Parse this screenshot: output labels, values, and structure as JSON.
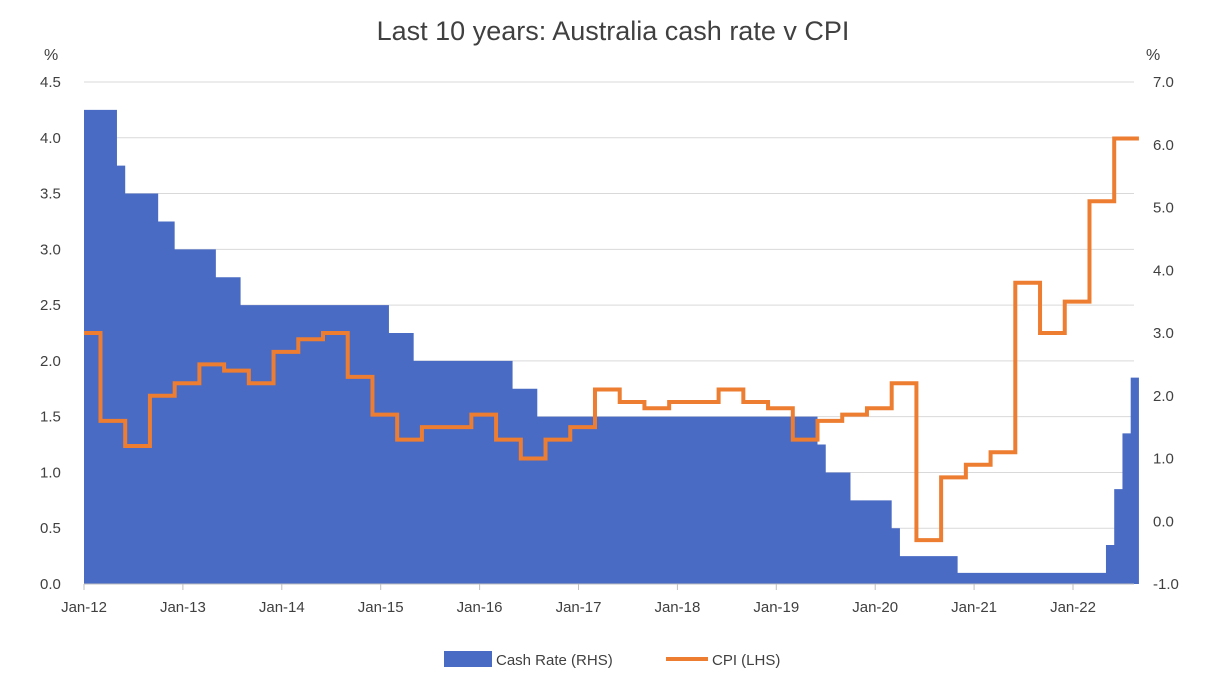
{
  "chart_data": {
    "type": "area+line",
    "title": "Last 10 years: Australia cash rate v CPI",
    "left_axis": {
      "unit": "%",
      "ylim": [
        0,
        4.5
      ],
      "ticks": [
        "0.0",
        "0.5",
        "1.0",
        "1.5",
        "2.0",
        "2.5",
        "3.0",
        "3.5",
        "4.0",
        "4.5"
      ]
    },
    "right_axis": {
      "unit": "%",
      "ylim": [
        -1.0,
        7.0
      ],
      "ticks": [
        "-1.0",
        "0.0",
        "1.0",
        "2.0",
        "3.0",
        "4.0",
        "5.0",
        "6.0",
        "7.0"
      ]
    },
    "x_ticks": [
      "Jan-12",
      "Jan-13",
      "Jan-14",
      "Jan-15",
      "Jan-16",
      "Jan-17",
      "Jan-18",
      "Jan-19",
      "Jan-20",
      "Jan-21",
      "Jan-22"
    ],
    "grid": "horizontal",
    "legend_position": "bottom",
    "series": [
      {
        "name": "Cash Rate (RHS)",
        "type": "area-step",
        "color": "#4A6BC4",
        "points": [
          [
            "Jan-12",
            4.25
          ],
          [
            "Apr-12",
            4.25
          ],
          [
            "May-12",
            3.75
          ],
          [
            "Jun-12",
            3.5
          ],
          [
            "Sep-12",
            3.5
          ],
          [
            "Oct-12",
            3.25
          ],
          [
            "Dec-12",
            3.0
          ],
          [
            "May-13",
            2.75
          ],
          [
            "Aug-13",
            2.5
          ],
          [
            "Feb-15",
            2.25
          ],
          [
            "May-15",
            2.0
          ],
          [
            "May-16",
            1.75
          ],
          [
            "Aug-16",
            1.5
          ],
          [
            "Jun-19",
            1.25
          ],
          [
            "Jul-19",
            1.0
          ],
          [
            "Oct-19",
            0.75
          ],
          [
            "Mar-20",
            0.5
          ],
          [
            "Apr-20",
            0.25
          ],
          [
            "Nov-20",
            0.1
          ],
          [
            "May-22",
            0.35
          ],
          [
            "Jun-22",
            0.85
          ],
          [
            "Jul-22",
            1.35
          ],
          [
            "Aug-22",
            1.85
          ],
          [
            "Sep-22",
            1.85
          ]
        ]
      },
      {
        "name": "CPI (LHS)",
        "type": "line-step",
        "color": "#ED7D31",
        "points": [
          [
            "Jan-12",
            3.0
          ],
          [
            "Mar-12",
            1.6
          ],
          [
            "Jun-12",
            1.2
          ],
          [
            "Sep-12",
            2.0
          ],
          [
            "Dec-12",
            2.2
          ],
          [
            "Mar-13",
            2.5
          ],
          [
            "Jun-13",
            2.4
          ],
          [
            "Sep-13",
            2.2
          ],
          [
            "Dec-13",
            2.7
          ],
          [
            "Mar-14",
            2.9
          ],
          [
            "Jun-14",
            3.0
          ],
          [
            "Sep-14",
            2.3
          ],
          [
            "Dec-14",
            1.7
          ],
          [
            "Mar-15",
            1.3
          ],
          [
            "Jun-15",
            1.5
          ],
          [
            "Dec-15",
            1.7
          ],
          [
            "Mar-16",
            1.3
          ],
          [
            "Jun-16",
            1.0
          ],
          [
            "Sep-16",
            1.3
          ],
          [
            "Dec-16",
            1.5
          ],
          [
            "Mar-17",
            2.1
          ],
          [
            "Jun-17",
            1.9
          ],
          [
            "Sep-17",
            1.8
          ],
          [
            "Dec-17",
            1.9
          ],
          [
            "Jun-18",
            2.1
          ],
          [
            "Sep-18",
            1.9
          ],
          [
            "Dec-18",
            1.8
          ],
          [
            "Mar-19",
            1.3
          ],
          [
            "Jun-19",
            1.6
          ],
          [
            "Sep-19",
            1.7
          ],
          [
            "Dec-19",
            1.8
          ],
          [
            "Mar-20",
            2.2
          ],
          [
            "Jun-20",
            -0.3
          ],
          [
            "Sep-20",
            0.7
          ],
          [
            "Dec-20",
            0.9
          ],
          [
            "Mar-21",
            1.1
          ],
          [
            "Jun-21",
            3.8
          ],
          [
            "Sep-21",
            3.0
          ],
          [
            "Dec-21",
            3.5
          ],
          [
            "Mar-22",
            5.1
          ],
          [
            "Jun-22",
            6.1
          ],
          [
            "Sep-22",
            6.1
          ]
        ]
      }
    ]
  }
}
